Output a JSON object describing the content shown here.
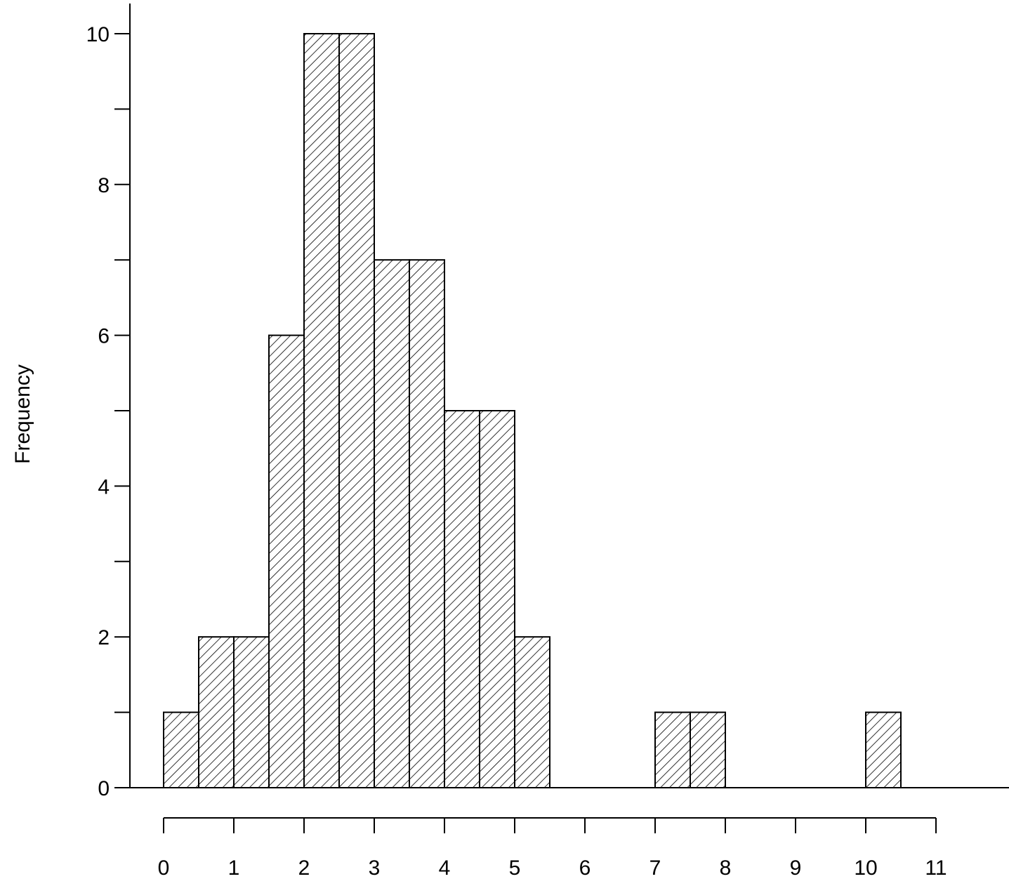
{
  "chart_data": {
    "type": "bar",
    "title": "",
    "xlabel": "",
    "ylabel": "Frequency",
    "bin_width": 0.5,
    "bins": [
      {
        "start": 0.0,
        "end": 0.5,
        "count": 1
      },
      {
        "start": 0.5,
        "end": 1.0,
        "count": 2
      },
      {
        "start": 1.0,
        "end": 1.5,
        "count": 2
      },
      {
        "start": 1.5,
        "end": 2.0,
        "count": 6
      },
      {
        "start": 2.0,
        "end": 2.5,
        "count": 10
      },
      {
        "start": 2.5,
        "end": 3.0,
        "count": 10
      },
      {
        "start": 3.0,
        "end": 3.5,
        "count": 7
      },
      {
        "start": 3.5,
        "end": 4.0,
        "count": 7
      },
      {
        "start": 4.0,
        "end": 4.5,
        "count": 5
      },
      {
        "start": 4.5,
        "end": 5.0,
        "count": 5
      },
      {
        "start": 5.0,
        "end": 5.5,
        "count": 2
      },
      {
        "start": 7.0,
        "end": 7.5,
        "count": 1
      },
      {
        "start": 7.5,
        "end": 8.0,
        "count": 1
      },
      {
        "start": 10.0,
        "end": 10.5,
        "count": 1
      }
    ],
    "xlim": [
      0,
      11
    ],
    "ylim": [
      0,
      10
    ],
    "x_ticks": [
      "0",
      "1",
      "2",
      "3",
      "4",
      "5",
      "6",
      "7",
      "8",
      "9",
      "10",
      "11"
    ],
    "y_ticks": [
      "0",
      "2",
      "4",
      "6",
      "8",
      "10"
    ],
    "bar_fill": "diagonal hatch",
    "grid": false,
    "legend": "none",
    "colors": {
      "stroke": "#000000",
      "background": "#ffffff"
    }
  }
}
